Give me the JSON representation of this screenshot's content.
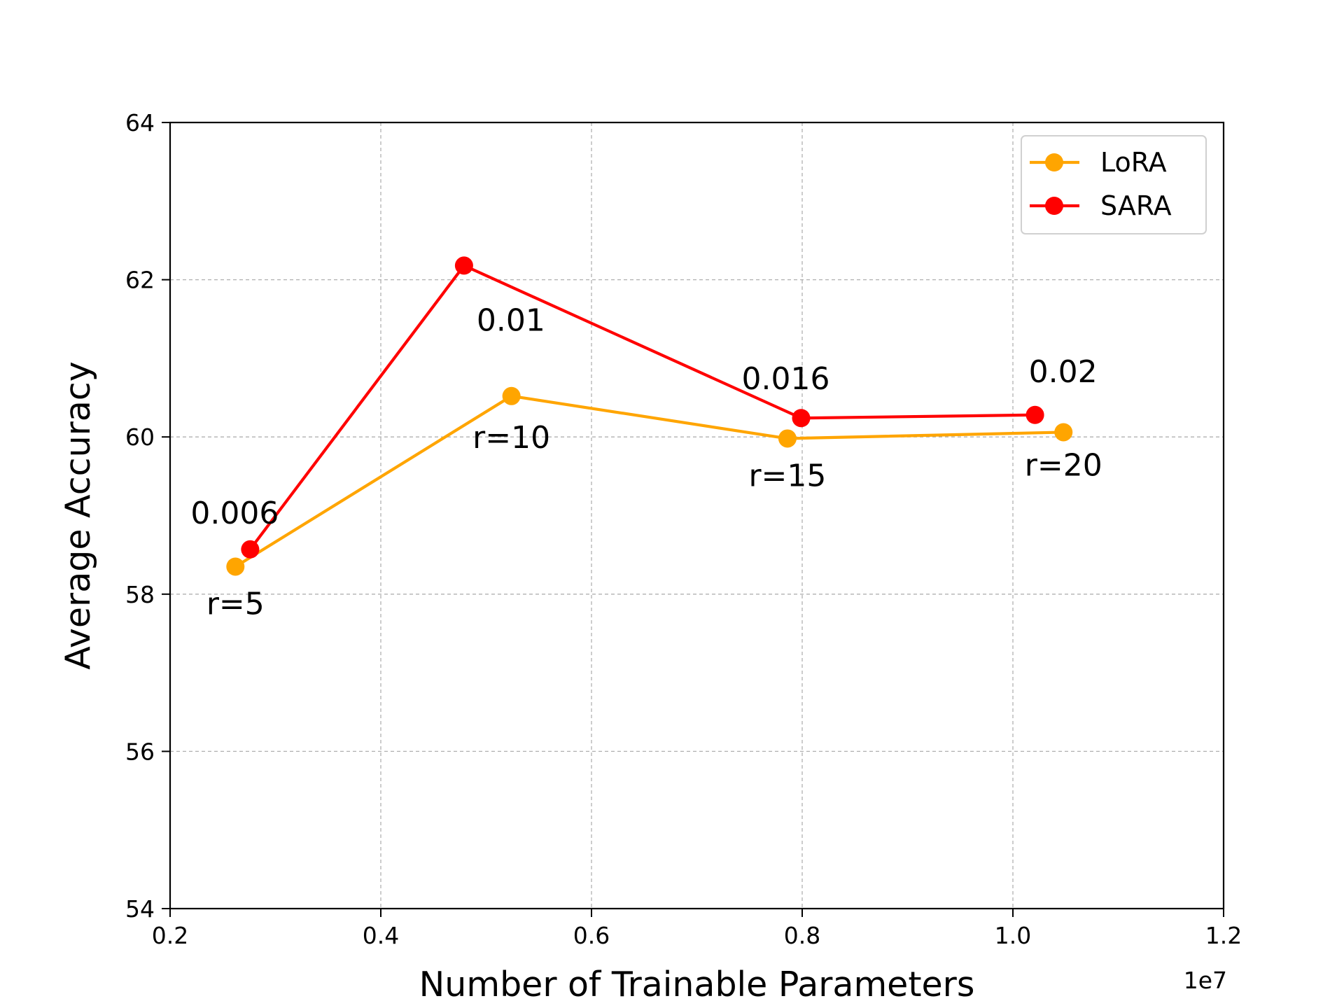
{
  "chart_data": {
    "type": "line",
    "xlabel": "Number of Trainable Parameters",
    "ylabel": "Average Accuracy",
    "x_offset_label": "1e7",
    "xlim": [
      0.2,
      1.2
    ],
    "ylim": [
      54,
      64
    ],
    "x_ticks": [
      0.2,
      0.4,
      0.6,
      0.8,
      1.0,
      1.2
    ],
    "x_tick_labels": [
      "0.2",
      "0.4",
      "0.6",
      "0.8",
      "1.0",
      "1.2"
    ],
    "y_ticks": [
      54,
      56,
      58,
      60,
      62,
      64
    ],
    "y_tick_labels": [
      "54",
      "56",
      "58",
      "60",
      "62",
      "64"
    ],
    "grid": true,
    "legend_position": "top-right",
    "series": [
      {
        "name": "LoRA",
        "color": "#FFA500",
        "x": [
          0.262,
          0.524,
          0.786,
          1.048
        ],
        "y": [
          58.35,
          60.52,
          59.98,
          60.06
        ],
        "labels": [
          "r=5",
          "r=10",
          "r=15",
          "r=20"
        ]
      },
      {
        "name": "SARA",
        "color": "#FF0000",
        "x": [
          0.276,
          0.479,
          0.799,
          1.021
        ],
        "y": [
          58.57,
          62.18,
          60.24,
          60.28
        ],
        "labels": [
          "0.006",
          "0.01",
          "0.016",
          "0.02"
        ]
      }
    ]
  }
}
